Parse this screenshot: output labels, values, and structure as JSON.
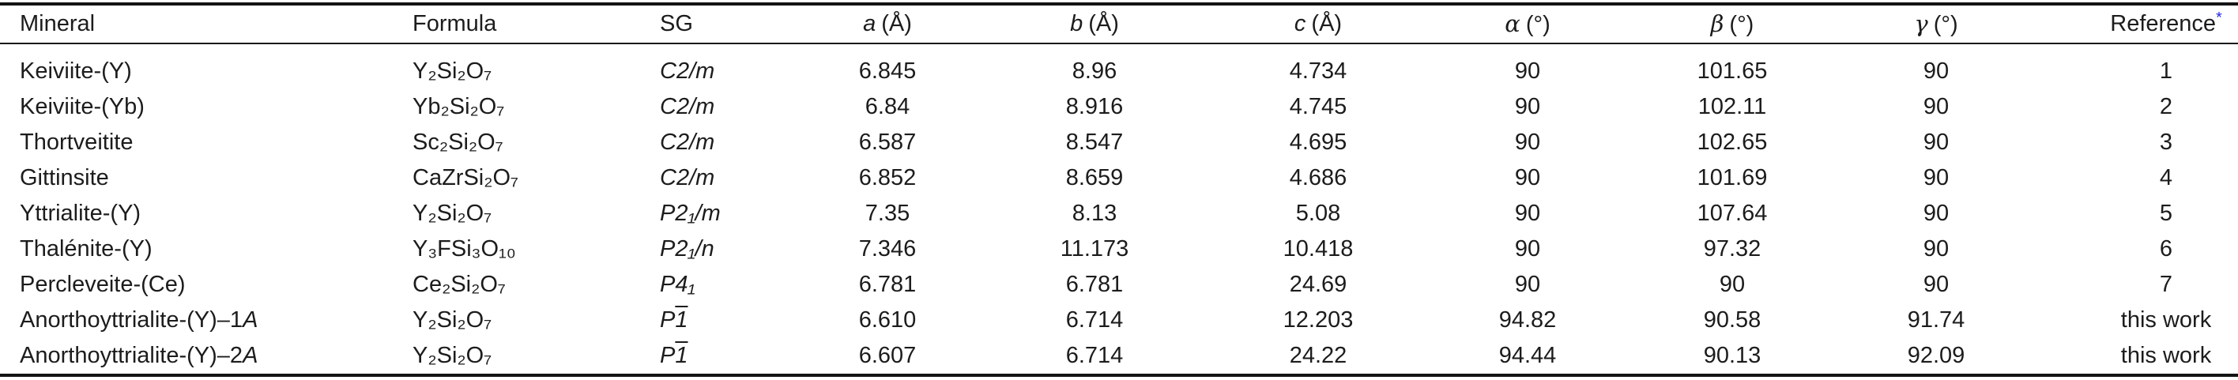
{
  "header": {
    "mineral": "Mineral",
    "formula": "Formula",
    "sg": "SG",
    "a_sym": "a",
    "b_sym": "b",
    "c_sym": "c",
    "angstrom_unit": "(Å)",
    "alpha_sym": "α",
    "beta_sym": "β",
    "gamma_sym": "γ",
    "degree_unit": "(°)",
    "reference": "Reference",
    "reference_star": "*"
  },
  "colors": {
    "reference_star_blue": "#2424e0",
    "rule_black": "#141414",
    "text": "#1c1c1c"
  },
  "rows": [
    {
      "mineral": "Keiviite-(Y)",
      "mineral_it": "",
      "formula": "Y₂Si₂O₇",
      "sg": "C2/m",
      "sg_ovl": "",
      "a": "6.845",
      "b": "8.96",
      "c": "4.734",
      "alpha": "90",
      "beta": "101.65",
      "gamma": "90",
      "reference": "1"
    },
    {
      "mineral": "Keiviite-(Yb)",
      "mineral_it": "",
      "formula": "Yb₂Si₂O₇",
      "sg": "C2/m",
      "sg_ovl": "",
      "a": "6.84",
      "b": "8.916",
      "c": "4.745",
      "alpha": "90",
      "beta": "102.11",
      "gamma": "90",
      "reference": "2"
    },
    {
      "mineral": "Thortveitite",
      "mineral_it": "",
      "formula": "Sc₂Si₂O₇",
      "sg": "C2/m",
      "sg_ovl": "",
      "a": "6.587",
      "b": "8.547",
      "c": "4.695",
      "alpha": "90",
      "beta": "102.65",
      "gamma": "90",
      "reference": "3"
    },
    {
      "mineral": "Gittinsite",
      "mineral_it": "",
      "formula": "CaZrSi₂O₇",
      "sg": "C2/m",
      "sg_ovl": "",
      "a": "6.852",
      "b": "8.659",
      "c": "4.686",
      "alpha": "90",
      "beta": "101.69",
      "gamma": "90",
      "reference": "4"
    },
    {
      "mineral": "Yttrialite-(Y)",
      "mineral_it": "",
      "formula": "Y₂Si₂O₇",
      "sg": "P2₁/m",
      "sg_ovl": "",
      "a": "7.35",
      "b": "8.13",
      "c": "5.08",
      "alpha": "90",
      "beta": "107.64",
      "gamma": "90",
      "reference": "5"
    },
    {
      "mineral": "Thalénite-(Y)",
      "mineral_it": "",
      "formula": "Y₃FSi₃O₁₀",
      "sg": "P2₁/n",
      "sg_ovl": "",
      "a": "7.346",
      "b": "11.173",
      "c": "10.418",
      "alpha": "90",
      "beta": "97.32",
      "gamma": "90",
      "reference": "6"
    },
    {
      "mineral": "Percleveite-(Ce)",
      "mineral_it": "",
      "formula": "Ce₂Si₂O₇",
      "sg": "P4₁",
      "sg_ovl": "",
      "a": "6.781",
      "b": "6.781",
      "c": "24.69",
      "alpha": "90",
      "beta": "90",
      "gamma": "90",
      "reference": "7"
    },
    {
      "mineral": "Anorthoyttrialite-(Y)–1",
      "mineral_it": "A",
      "formula": "Y₂Si₂O₇",
      "sg": "P",
      "sg_ovl": "1",
      "a": "6.610",
      "b": "6.714",
      "c": "12.203",
      "alpha": "94.82",
      "beta": "90.58",
      "gamma": "91.74",
      "reference": "this work"
    },
    {
      "mineral": "Anorthoyttrialite-(Y)–2",
      "mineral_it": "A",
      "formula": "Y₂Si₂O₇",
      "sg": "P",
      "sg_ovl": "1",
      "a": "6.607",
      "b": "6.714",
      "c": "24.22",
      "alpha": "94.44",
      "beta": "90.13",
      "gamma": "92.09",
      "reference": "this work"
    }
  ]
}
